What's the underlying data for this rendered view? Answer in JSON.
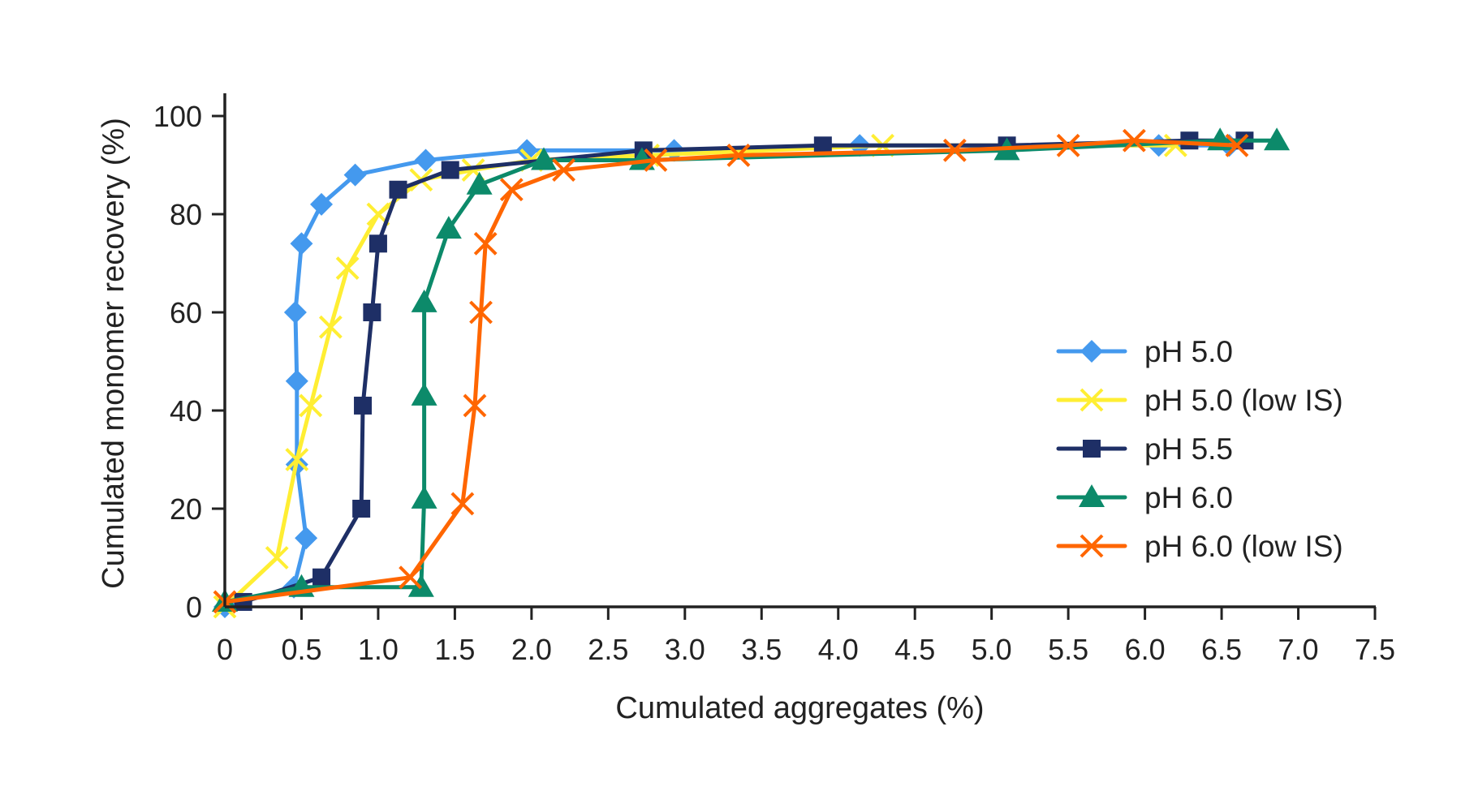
{
  "chart_data": {
    "type": "line",
    "title": "",
    "xlabel": "Cumulated aggregates (%)",
    "ylabel": "Cumulated monomer recovery (%)",
    "xlim": [
      0,
      7.5
    ],
    "ylim": [
      0,
      100
    ],
    "xticks": [
      "0",
      "0.5",
      "1.0",
      "1.5",
      "2.0",
      "2.5",
      "3.0",
      "3.5",
      "4.0",
      "4.5",
      "5.0",
      "5.5",
      "6.0",
      "6.5",
      "7.0",
      "7.5"
    ],
    "xtick_values": [
      0,
      0.5,
      1.0,
      1.5,
      2.0,
      2.5,
      3.0,
      3.5,
      4.0,
      4.5,
      5.0,
      5.5,
      6.0,
      6.5,
      7.0,
      7.5
    ],
    "yticks": [
      "0",
      "20",
      "40",
      "60",
      "80",
      "100"
    ],
    "ytick_values": [
      0,
      20,
      40,
      60,
      80,
      100
    ],
    "grid": false,
    "legend_position": "right-center",
    "series": [
      {
        "name": "pH 5.0",
        "color": "#4499ee",
        "marker": "diamond",
        "points": [
          [
            0,
            0
          ],
          [
            0.45,
            4
          ],
          [
            0.53,
            14
          ],
          [
            0.47,
            29
          ],
          [
            0.47,
            46
          ],
          [
            0.46,
            60
          ],
          [
            0.5,
            74
          ],
          [
            0.63,
            82
          ],
          [
            0.85,
            88
          ],
          [
            1.31,
            91
          ],
          [
            1.97,
            93
          ],
          [
            2.93,
            93
          ],
          [
            4.14,
            94
          ],
          [
            6.09,
            94
          ],
          [
            6.55,
            94
          ]
        ]
      },
      {
        "name": "pH 5.0 (low IS)",
        "color": "#ffee33",
        "marker": "x",
        "points": [
          [
            0,
            0
          ],
          [
            0.34,
            10
          ],
          [
            0.47,
            30
          ],
          [
            0.56,
            41
          ],
          [
            0.69,
            57
          ],
          [
            0.8,
            69
          ],
          [
            1.0,
            80
          ],
          [
            1.28,
            87
          ],
          [
            1.62,
            89
          ],
          [
            2.0,
            91
          ],
          [
            2.76,
            92
          ],
          [
            4.29,
            94
          ],
          [
            6.2,
            94
          ]
        ]
      },
      {
        "name": "pH 5.5",
        "color": "#1e2f66",
        "marker": "square",
        "points": [
          [
            0.12,
            1
          ],
          [
            0.63,
            6
          ],
          [
            0.89,
            20
          ],
          [
            0.9,
            41
          ],
          [
            0.96,
            60
          ],
          [
            1.0,
            74
          ],
          [
            1.13,
            85
          ],
          [
            1.47,
            89
          ],
          [
            2.73,
            93
          ],
          [
            3.9,
            94
          ],
          [
            5.1,
            94
          ],
          [
            6.29,
            95
          ],
          [
            6.65,
            95
          ]
        ]
      },
      {
        "name": "pH 6.0",
        "color": "#0c8a6a",
        "marker": "triangle",
        "points": [
          [
            0,
            1
          ],
          [
            0.5,
            4
          ],
          [
            1.28,
            4
          ],
          [
            1.3,
            22
          ],
          [
            1.3,
            43
          ],
          [
            1.3,
            62
          ],
          [
            1.46,
            77
          ],
          [
            1.66,
            86
          ],
          [
            2.08,
            91
          ],
          [
            2.72,
            91
          ],
          [
            5.1,
            93
          ],
          [
            6.49,
            95
          ],
          [
            6.86,
            95
          ]
        ]
      },
      {
        "name": "pH 6.0 (low IS)",
        "color": "#ff6600",
        "marker": "x",
        "points": [
          [
            0,
            1
          ],
          [
            1.21,
            6
          ],
          [
            1.55,
            21
          ],
          [
            1.63,
            41
          ],
          [
            1.67,
            60
          ],
          [
            1.7,
            74
          ],
          [
            1.87,
            85
          ],
          [
            2.21,
            89
          ],
          [
            2.81,
            91
          ],
          [
            3.35,
            92
          ],
          [
            4.76,
            93
          ],
          [
            5.5,
            94
          ],
          [
            5.93,
            95
          ],
          [
            6.6,
            94
          ]
        ]
      }
    ]
  }
}
